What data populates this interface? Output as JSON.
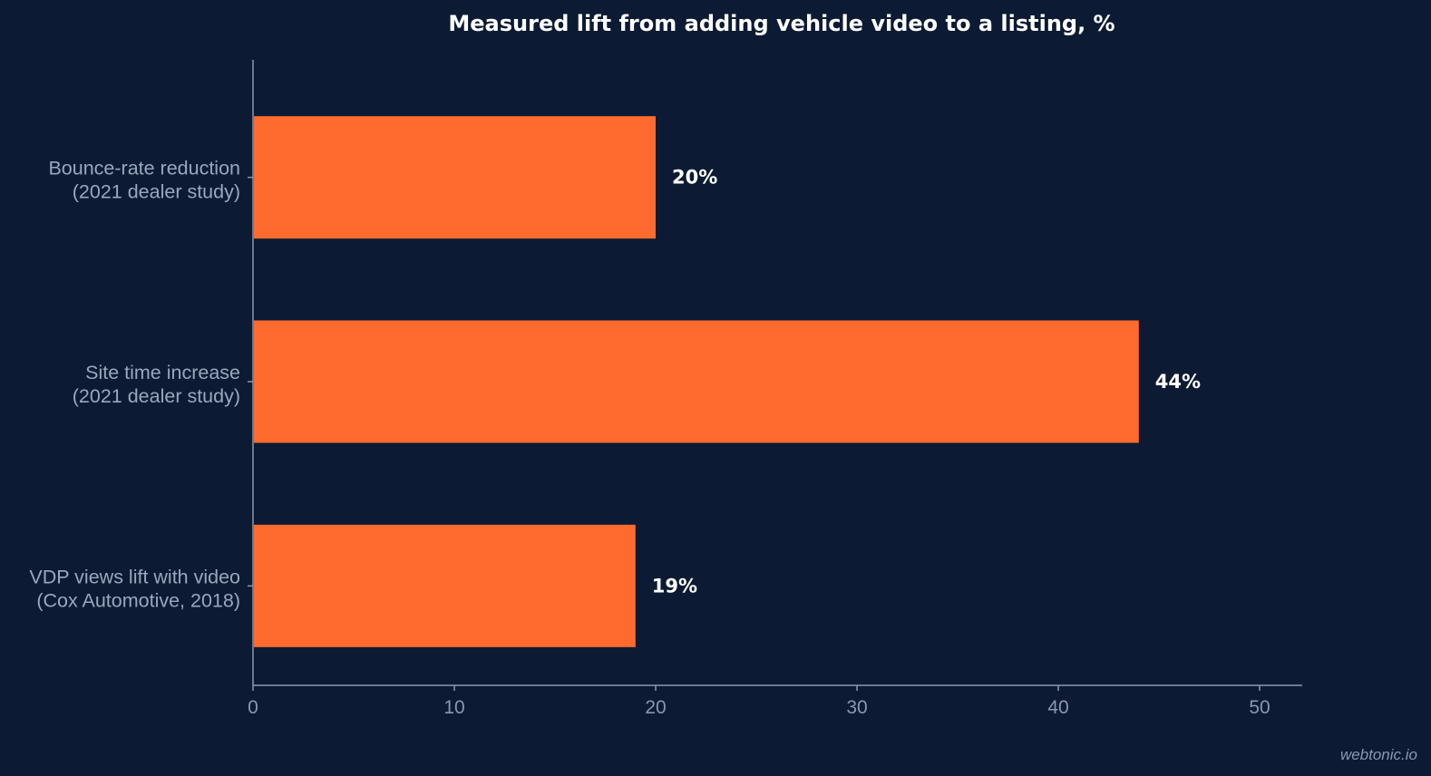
{
  "chart_data": {
    "type": "bar",
    "orientation": "horizontal",
    "title": "Measured lift from adding vehicle video to a listing, %",
    "xlabel": "",
    "ylabel": "",
    "categories": [
      [
        "Bounce-rate reduction",
        "(2021 dealer study)"
      ],
      [
        "Site time increase",
        "(2021 dealer study)"
      ],
      [
        "VDP views lift with video",
        "(Cox Automotive, 2018)"
      ]
    ],
    "values": [
      20,
      44,
      19
    ],
    "data_labels": [
      "20%",
      "44%",
      "19%"
    ],
    "xlim": [
      0,
      52
    ],
    "xticks": [
      0,
      10,
      20,
      30,
      40,
      50
    ],
    "grid": false,
    "legend": "none"
  },
  "colors": {
    "background": "#0c1b33",
    "bar": "#ff6b2e",
    "axis": "#8b97ad"
  },
  "watermark": "webtonic.io"
}
